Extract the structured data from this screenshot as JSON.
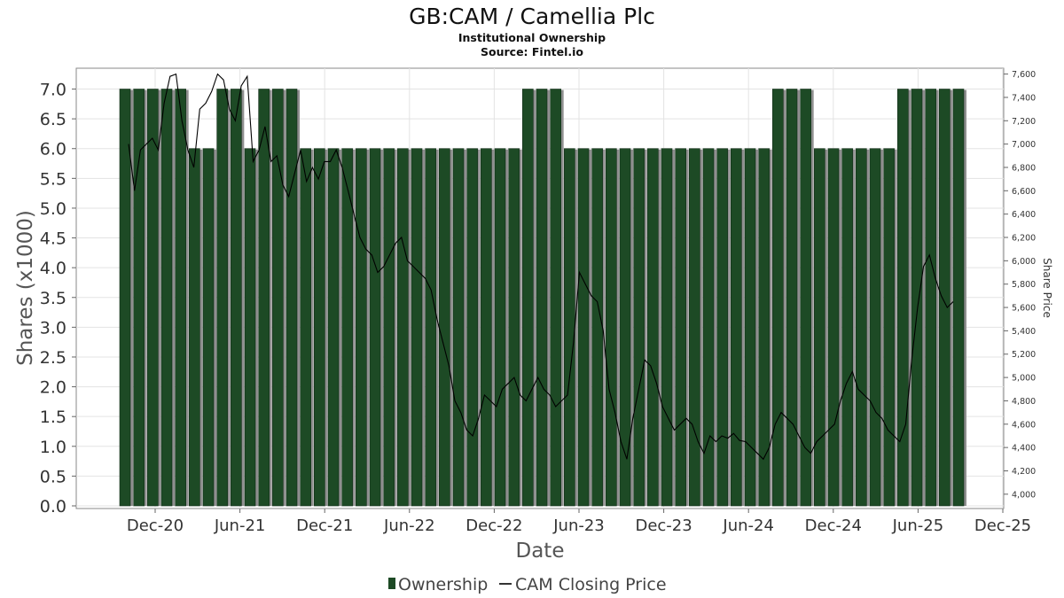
{
  "chart_data": {
    "type": "bar",
    "title": "GB:CAM / Camellia Plc",
    "subtitle_lines": [
      "Institutional Ownership",
      "Source: Fintel.io"
    ],
    "xlabel": "Date",
    "ylabel_left": "Shares (x1000)",
    "ylabel_right": "Share Price",
    "x_tick_labels": [
      "Dec-20",
      "Jun-21",
      "Dec-21",
      "Jun-22",
      "Dec-22",
      "Jun-23",
      "Dec-23",
      "Jun-24",
      "Dec-24",
      "Jun-25",
      "Dec-25"
    ],
    "y_left_ticks": [
      "0.0",
      "0.5",
      "1.0",
      "1.5",
      "2.0",
      "2.5",
      "3.0",
      "3.5",
      "4.0",
      "4.5",
      "5.0",
      "5.5",
      "6.0",
      "6.5",
      "7.0"
    ],
    "y_right_ticks": [
      "4,000",
      "4,200",
      "4,400",
      "4,600",
      "4,800",
      "5,000",
      "5,200",
      "5,400",
      "5,600",
      "5,800",
      "6,000",
      "6,200",
      "6,400",
      "6,600",
      "6,800",
      "7,000",
      "7,200",
      "7,400",
      "7,600"
    ],
    "ylim_left": [
      0,
      7.35
    ],
    "ylim_right": [
      3900,
      7650
    ],
    "grid": true,
    "legend_placement": "bottom-center",
    "series": [
      {
        "name": "Ownership",
        "color": "#1d4a25",
        "values": [
          7.0,
          7.0,
          7.0,
          7.0,
          7.0,
          6.0,
          6.0,
          7.0,
          7.0,
          6.0,
          7.0,
          7.0,
          7.0,
          6.0,
          6.0,
          6.0,
          6.0,
          6.0,
          6.0,
          6.0,
          6.0,
          6.0,
          6.0,
          6.0,
          6.0,
          6.0,
          6.0,
          6.0,
          6.0,
          7.0,
          7.0,
          7.0,
          6.0,
          6.0,
          6.0,
          6.0,
          6.0,
          6.0,
          6.0,
          6.0,
          6.0,
          6.0,
          6.0,
          6.0,
          6.0,
          6.0,
          6.0,
          7.0,
          7.0,
          7.0,
          6.0,
          6.0,
          6.0,
          6.0,
          6.0,
          6.0,
          7.0,
          7.0,
          7.0,
          7.0,
          7.0
        ]
      },
      {
        "name": "CAM Closing Price",
        "color": "#000000",
        "values": [
          7000,
          6600,
          6950,
          7000,
          7050,
          6950,
          7350,
          7580,
          7600,
          7200,
          6950,
          6800,
          7300,
          7350,
          7450,
          7600,
          7550,
          7300,
          7200,
          7500,
          7580,
          6850,
          6950,
          7150,
          6850,
          6900,
          6650,
          6550,
          6750,
          6950,
          6680,
          6800,
          6700,
          6850,
          6850,
          6950,
          6800,
          6600,
          6400,
          6200,
          6100,
          6050,
          5900,
          5950,
          6050,
          6150,
          6200,
          6000,
          5950,
          5900,
          5850,
          5750,
          5500,
          5300,
          5100,
          4800,
          4700,
          4550,
          4500,
          4650,
          4850,
          4800,
          4750,
          4900,
          4950,
          5000,
          4850,
          4800,
          4900,
          5000,
          4900,
          4850,
          4750,
          4800,
          4850,
          5300,
          5900,
          5800,
          5700,
          5650,
          5400,
          4900,
          4700,
          4450,
          4300,
          4650,
          4900,
          5150,
          5100,
          4950,
          4750,
          4650,
          4550,
          4600,
          4650,
          4600,
          4450,
          4350,
          4500,
          4450,
          4500,
          4480,
          4520,
          4460,
          4450,
          4400,
          4350,
          4300,
          4400,
          4600,
          4700,
          4650,
          4600,
          4500,
          4400,
          4350,
          4450,
          4500,
          4550,
          4600,
          4800,
          4950,
          5050,
          4900,
          4850,
          4800,
          4700,
          4650,
          4550,
          4500,
          4450,
          4600,
          5150,
          5600,
          5950,
          6050,
          5850,
          5700,
          5600,
          5650
        ]
      }
    ]
  }
}
